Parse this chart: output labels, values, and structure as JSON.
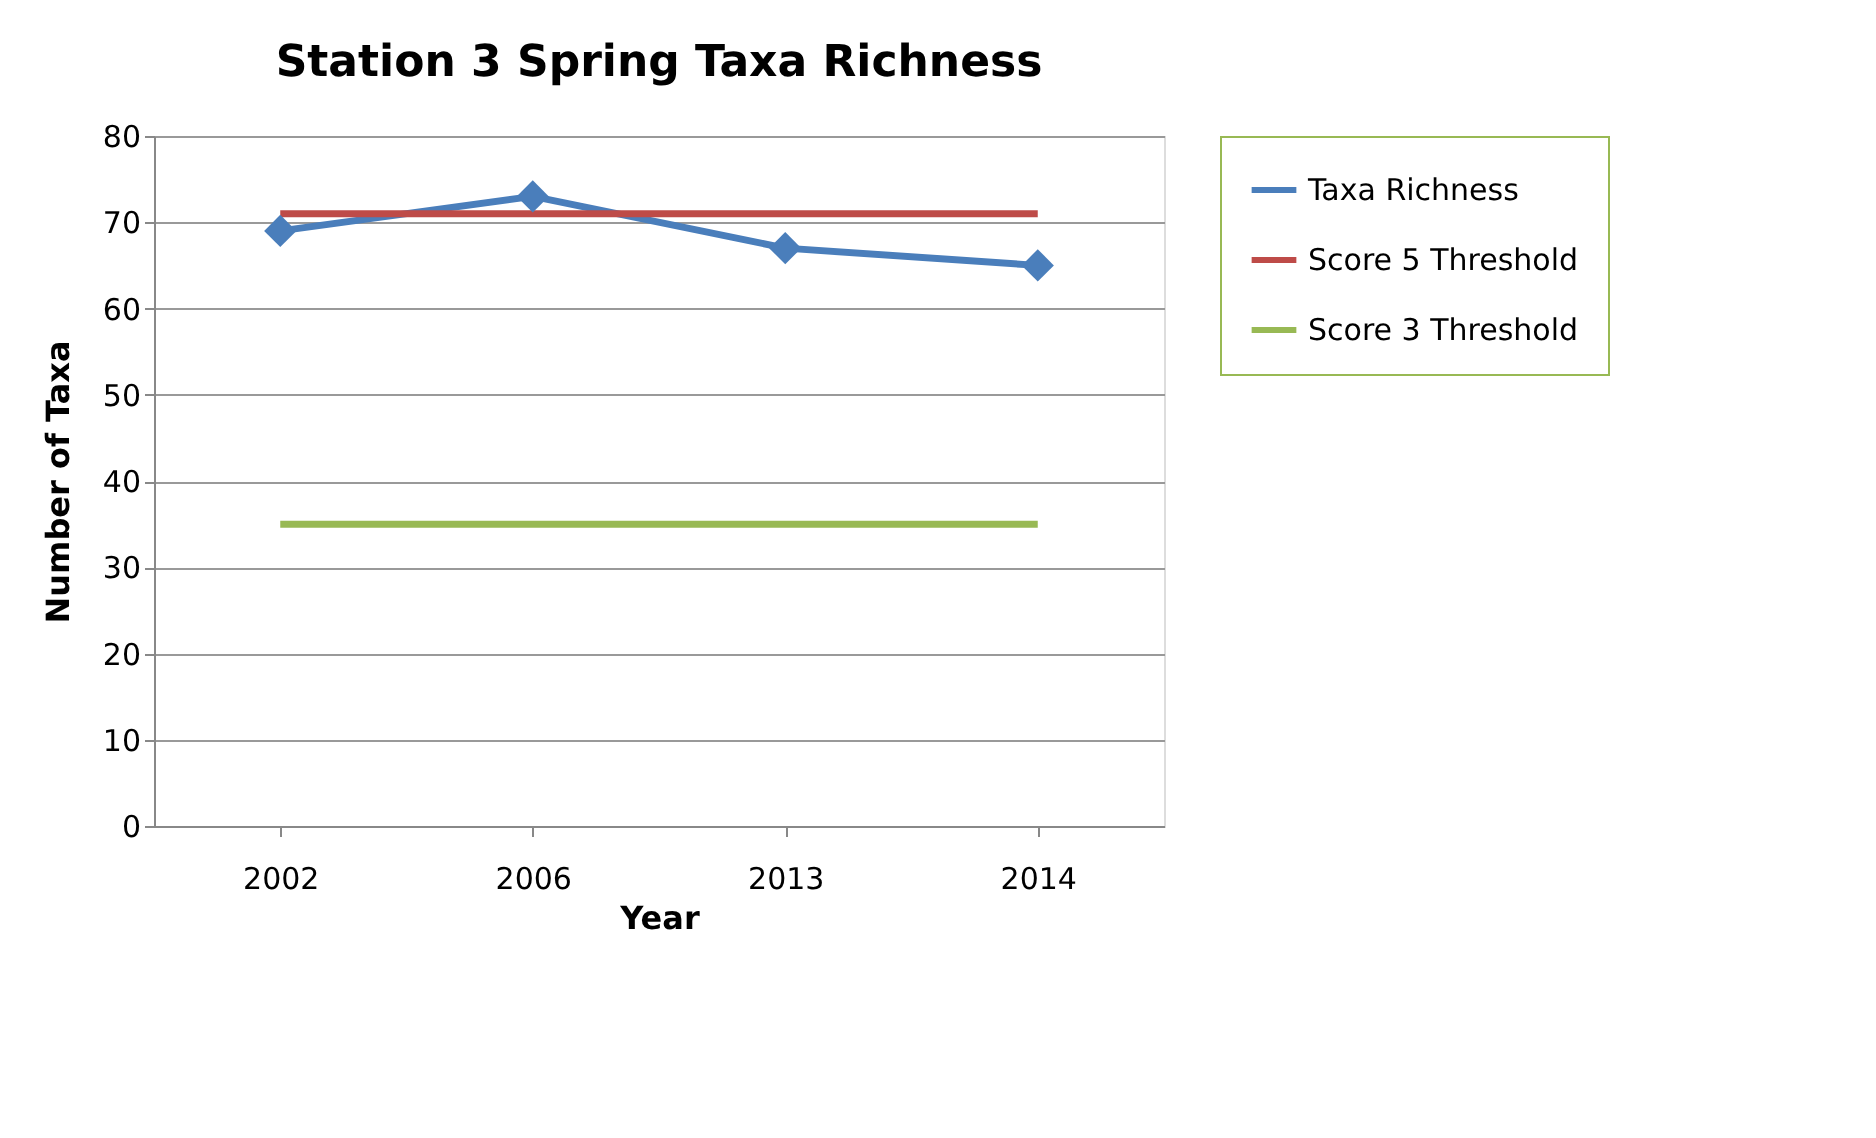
{
  "chart_data": {
    "type": "line",
    "title": "Station 3 Spring Taxa Richness",
    "xlabel": "Year",
    "ylabel": "Number of Taxa",
    "categories": [
      "2002",
      "2006",
      "2013",
      "2014"
    ],
    "series": [
      {
        "name": "Taxa Richness",
        "color": "#4a7ebb",
        "values": [
          69,
          73,
          67,
          65
        ],
        "marker": "diamond"
      },
      {
        "name": "Score 5 Threshold",
        "color": "#be4b48",
        "values": [
          71,
          71,
          71,
          71
        ],
        "marker": "none"
      },
      {
        "name": "Score 3 Threshold",
        "color": "#98b954",
        "values": [
          35,
          35,
          35,
          35
        ],
        "marker": "none"
      }
    ],
    "ylim": [
      0,
      80
    ],
    "yticks": [
      0,
      10,
      20,
      30,
      40,
      50,
      60,
      70,
      80
    ],
    "grid": "y",
    "legend": "right",
    "line_style": "solid"
  }
}
